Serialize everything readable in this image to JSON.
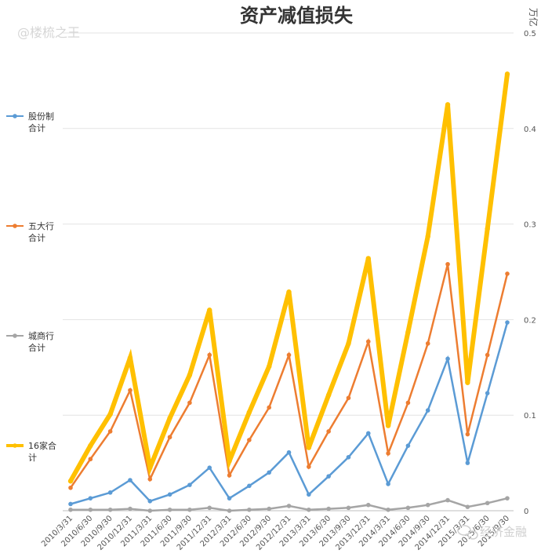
{
  "watermarks": {
    "top_left": "@楼梳之王",
    "bottom_right": "经济金融"
  },
  "chart_data": {
    "type": "line",
    "title": "资产减值损失",
    "unit": "万亿",
    "ylim": [
      0,
      0.5
    ],
    "yticks": [
      "0",
      "0.1",
      "0.2",
      "0.3",
      "0.4",
      "0.5"
    ],
    "grid": true,
    "legend_position": "left",
    "categories": [
      "2010/3/31",
      "2010/6/30",
      "2010/9/30",
      "2010/12/31",
      "2011/3/31",
      "2011/6/30",
      "2011/9/30",
      "2011/12/31",
      "2012/3/31",
      "2012/6/30",
      "2012/9/30",
      "2012/12/31",
      "2013/3/31",
      "2013/6/30",
      "2013/9/30",
      "2013/12/31",
      "2014/3/31",
      "2014/6/30",
      "2014/9/30",
      "2014/12/31",
      "2015/3/31",
      "2015/6/30",
      "2015/9/30"
    ],
    "series": [
      {
        "name": "股份制合计",
        "legend_lines": [
          "股份制",
          "合计"
        ],
        "color": "#5b9bd5",
        "width": 2.5,
        "values": [
          0.007,
          0.013,
          0.019,
          0.032,
          0.01,
          0.017,
          0.027,
          0.045,
          0.013,
          0.026,
          0.04,
          0.061,
          0.017,
          0.036,
          0.056,
          0.081,
          0.028,
          0.068,
          0.105,
          0.159,
          0.05,
          0.123,
          0.197
        ]
      },
      {
        "name": "五大行合计",
        "legend_lines": [
          "五大行",
          "合计"
        ],
        "color": "#ed7d31",
        "width": 2.5,
        "values": [
          0.024,
          0.054,
          0.083,
          0.126,
          0.033,
          0.077,
          0.113,
          0.163,
          0.037,
          0.074,
          0.108,
          0.163,
          0.046,
          0.083,
          0.118,
          0.177,
          0.06,
          0.113,
          0.175,
          0.258,
          0.08,
          0.163,
          0.248
        ]
      },
      {
        "name": "城商行合计",
        "legend_lines": [
          "城商行",
          "合计"
        ],
        "color": "#a5a5a5",
        "width": 2.5,
        "values": [
          0.001,
          0.001,
          0.001,
          0.002,
          0.0,
          0.001,
          0.001,
          0.003,
          0.0,
          0.001,
          0.002,
          0.005,
          0.001,
          0.002,
          0.003,
          0.006,
          0.001,
          0.003,
          0.006,
          0.011,
          0.004,
          0.008,
          0.013
        ]
      },
      {
        "name": "16家合计",
        "legend_lines": [
          "16家合",
          "计"
        ],
        "color": "#ffc000",
        "width": 6,
        "values": [
          0.031,
          0.068,
          0.101,
          0.16,
          0.045,
          0.097,
          0.142,
          0.21,
          0.052,
          0.103,
          0.151,
          0.229,
          0.066,
          0.121,
          0.175,
          0.264,
          0.089,
          0.187,
          0.287,
          0.425,
          0.134,
          0.295,
          0.457
        ]
      }
    ]
  }
}
